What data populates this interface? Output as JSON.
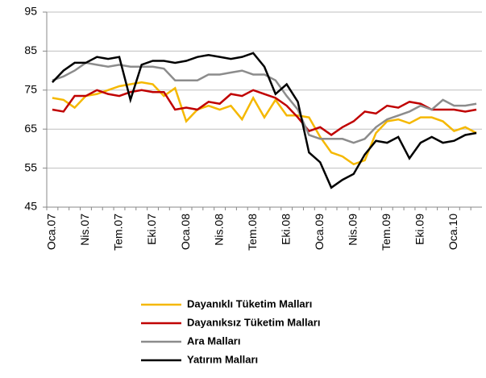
{
  "chart_data": {
    "type": "line",
    "categories": [
      "Oca.07",
      null,
      null,
      "Nis.07",
      null,
      null,
      "Tem.07",
      null,
      null,
      "Eki.07",
      null,
      null,
      "Oca.08",
      null,
      null,
      "Nis.08",
      null,
      null,
      "Tem.08",
      null,
      null,
      "Eki.08",
      null,
      null,
      "Oca.09",
      null,
      null,
      "Nis.09",
      null,
      null,
      "Tem.09",
      null,
      null,
      "Eki.09",
      null,
      null,
      "Oca.10",
      null,
      null
    ],
    "ylim": [
      45,
      95
    ],
    "yticks": [
      45,
      55,
      65,
      75,
      85,
      95
    ],
    "grid": true,
    "series": [
      {
        "name": "Dayanıklı Tüketim Malları",
        "color": "#f5b800",
        "values": [
          73,
          72.5,
          70.5,
          73.5,
          74,
          75,
          76,
          76.5,
          77,
          76.5,
          73.5,
          75.5,
          67,
          70,
          71,
          70,
          71,
          67.5,
          73,
          68,
          72.5,
          68.5,
          68.5,
          68,
          63,
          59,
          58,
          56,
          57,
          64,
          67,
          67.5,
          66.5,
          68,
          68,
          67,
          64.5,
          65.5,
          64
        ]
      },
      {
        "name": "Dayanıksız Tüketim Malları",
        "color": "#c00000",
        "values": [
          70,
          69.5,
          73.5,
          73.5,
          75,
          74,
          73.5,
          74.5,
          75,
          74.5,
          74.5,
          70,
          70.5,
          70,
          72,
          71.5,
          74,
          73.5,
          75,
          74,
          73,
          71,
          68,
          64.5,
          65.5,
          63.5,
          65.5,
          67,
          69.5,
          69,
          71,
          70.5,
          72,
          71.5,
          70,
          70,
          70,
          69.5,
          70
        ]
      },
      {
        "name": "Ara Malları",
        "color": "#8c8c8c",
        "values": [
          77.5,
          78.5,
          80,
          82,
          81.5,
          81,
          81.5,
          81,
          81,
          81,
          80.5,
          77.5,
          77.5,
          77.5,
          79,
          79,
          79.5,
          80,
          79,
          79,
          77.5,
          73.5,
          70,
          63.5,
          62.5,
          62.5,
          62.5,
          61.5,
          62.5,
          65.5,
          67.5,
          68.5,
          69.5,
          71,
          70,
          72.5,
          71,
          71,
          71.5
        ]
      },
      {
        "name": "Yatırım Malları",
        "color": "#000000",
        "values": [
          77,
          80,
          82,
          82,
          83.5,
          83,
          83.5,
          72.5,
          81.5,
          82.5,
          82.5,
          82,
          82.5,
          83.5,
          84,
          83.5,
          83,
          83.5,
          84.5,
          81,
          74,
          76.5,
          72,
          59,
          56.5,
          50,
          52,
          53.5,
          58.5,
          62,
          61.5,
          63,
          57.5,
          61.5,
          63,
          61.5,
          62,
          63.5,
          64
        ]
      }
    ]
  }
}
